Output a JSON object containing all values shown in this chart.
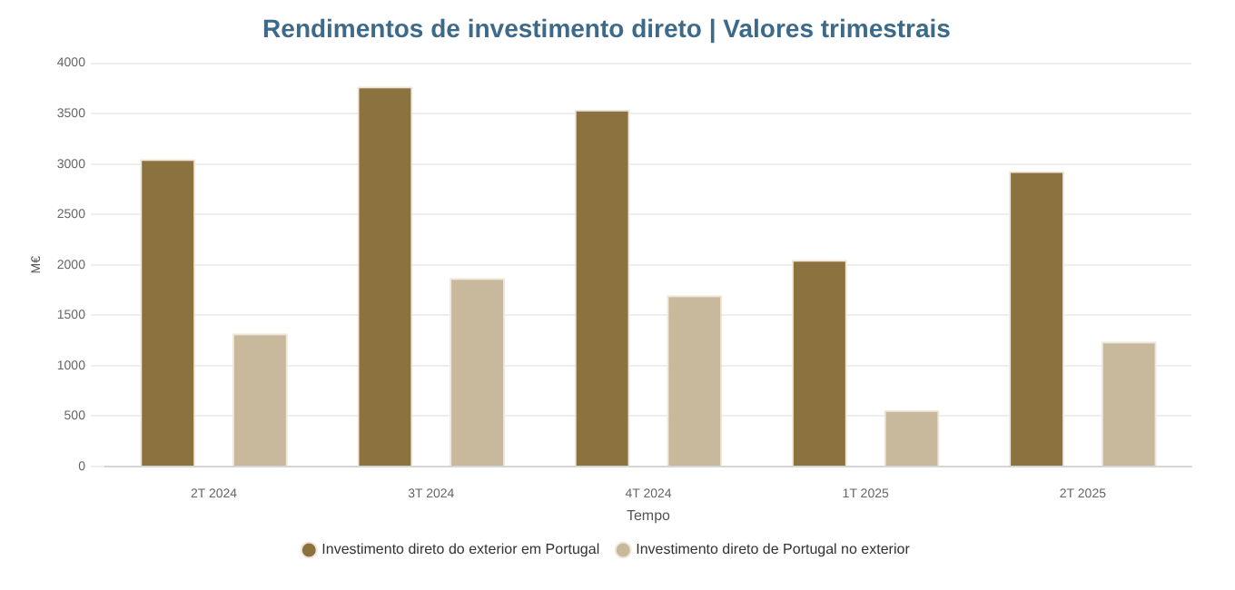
{
  "chart_data": {
    "type": "bar",
    "title": "Rendimentos de investimento direto | Valores trimestrais",
    "xlabel": "Tempo",
    "ylabel": "M€",
    "categories": [
      "2T 2024",
      "3T 2024",
      "4T 2024",
      "1T 2025",
      "2T 2025"
    ],
    "series": [
      {
        "name": "Investimento direto do exterior em Portugal",
        "color": "#8b723e",
        "values": [
          3050,
          3770,
          3540,
          2050,
          2930
        ]
      },
      {
        "name": "Investimento direto de Portugal no exterior",
        "color": "#c8b99c",
        "values": [
          1320,
          1870,
          1700,
          560,
          1240
        ]
      }
    ],
    "ylim": [
      0,
      4000
    ],
    "yticks": [
      0,
      500,
      1000,
      1500,
      2000,
      2500,
      3000,
      3500,
      4000
    ],
    "grid": "y",
    "legend": "bottom"
  }
}
